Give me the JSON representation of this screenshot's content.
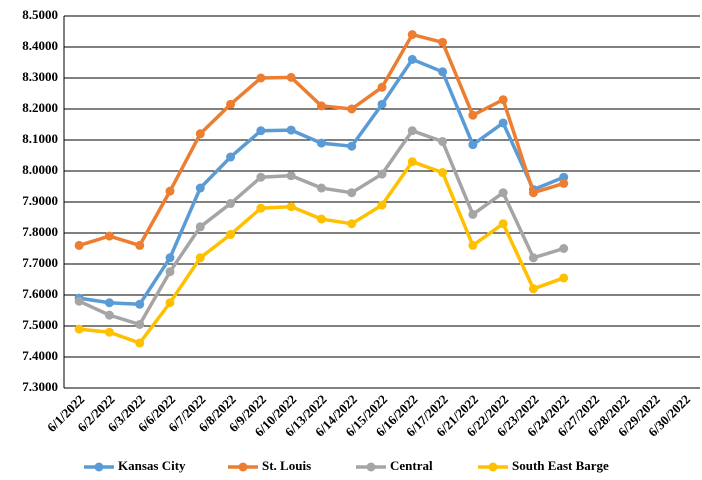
{
  "chart_data": {
    "type": "line",
    "categories": [
      "6/1/2022",
      "6/2/2022",
      "6/3/2022",
      "6/6/2022",
      "6/7/2022",
      "6/8/2022",
      "6/9/2022",
      "6/10/2022",
      "6/13/2022",
      "6/14/2022",
      "6/15/2022",
      "6/16/2022",
      "6/17/2022",
      "6/21/2022",
      "6/22/2022",
      "6/23/2022",
      "6/24/2022",
      "6/27/2022",
      "6/28/2022",
      "6/29/2022",
      "6/30/2022"
    ],
    "series": [
      {
        "name": "Kansas City",
        "color": "#5b9bd5",
        "values": [
          7.59,
          7.575,
          7.57,
          7.72,
          7.945,
          8.045,
          8.13,
          8.132,
          8.09,
          8.08,
          8.215,
          8.36,
          8.32,
          8.085,
          8.155,
          7.94,
          7.98,
          null,
          null,
          null,
          null
        ]
      },
      {
        "name": "St. Louis",
        "color": "#ed7d31",
        "values": [
          7.76,
          7.79,
          7.76,
          7.935,
          8.12,
          8.215,
          8.3,
          8.302,
          8.21,
          8.2,
          8.27,
          8.44,
          8.415,
          8.18,
          8.23,
          7.93,
          7.96,
          null,
          null,
          null,
          null
        ]
      },
      {
        "name": "Central",
        "color": "#a5a5a5",
        "values": [
          7.58,
          7.535,
          7.505,
          7.675,
          7.82,
          7.895,
          7.98,
          7.985,
          7.945,
          7.93,
          7.99,
          8.13,
          8.095,
          7.86,
          7.93,
          7.72,
          7.75,
          null,
          null,
          null,
          null
        ]
      },
      {
        "name": "South East Barge",
        "color": "#ffc000",
        "values": [
          7.49,
          7.48,
          7.445,
          7.575,
          7.72,
          7.795,
          7.88,
          7.885,
          7.845,
          7.83,
          7.89,
          8.03,
          7.995,
          7.76,
          7.83,
          7.62,
          7.655,
          null,
          null,
          null,
          null
        ]
      }
    ],
    "ylim": [
      7.3,
      8.5
    ],
    "yticks": [
      {
        "value": 7.3,
        "label": "7.3000"
      },
      {
        "value": 7.4,
        "label": "7.4000"
      },
      {
        "value": 7.5,
        "label": "7.5000"
      },
      {
        "value": 7.6,
        "label": "7.6000"
      },
      {
        "value": 7.7,
        "label": "7.7000"
      },
      {
        "value": 7.8,
        "label": "7.8000"
      },
      {
        "value": 7.9,
        "label": "7.9000"
      },
      {
        "value": 8.0,
        "label": "8.0000"
      },
      {
        "value": 8.1,
        "label": "8.1000"
      },
      {
        "value": 8.2,
        "label": "8.2000"
      },
      {
        "value": 8.3,
        "label": "8.3000"
      },
      {
        "value": 8.4,
        "label": "8.4000"
      },
      {
        "value": 8.5,
        "label": "8.5000"
      }
    ],
    "grid": true,
    "legend": "bottom"
  }
}
